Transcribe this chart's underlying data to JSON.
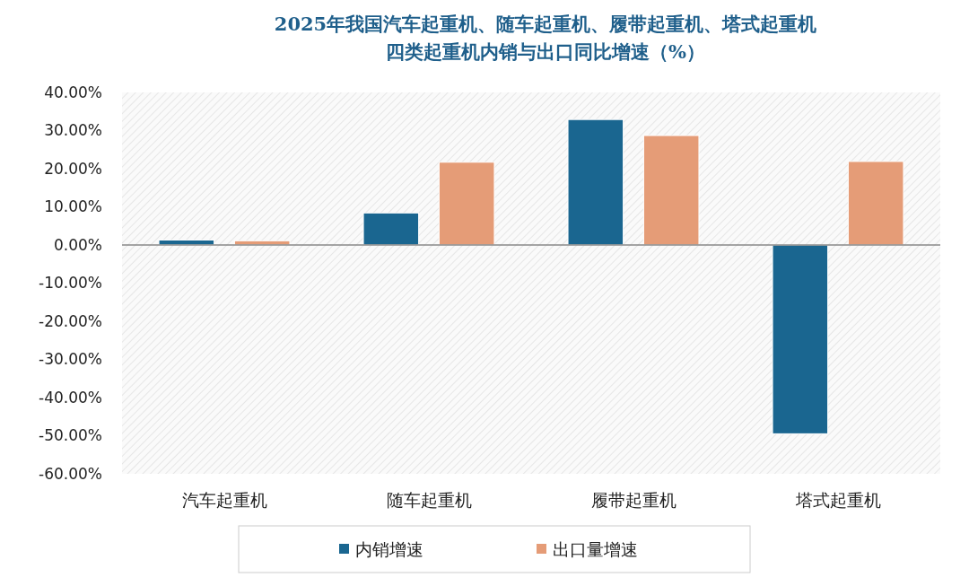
{
  "chart_data": {
    "type": "bar",
    "title": "2025年我国汽车起重机、随车起重机、履带起重机、塔式起重机四类起重机内销与出口同比增速（%）",
    "categories": [
      "汽车起重机",
      "随车起重机",
      "履带起重机",
      "塔式起重机"
    ],
    "series": [
      {
        "name": "内销增速",
        "color": "#1a6690",
        "values": [
          1.3,
          8.4,
          32.9,
          -49.5
        ]
      },
      {
        "name": "出口量增速",
        "color": "#e59c77",
        "values": [
          1.1,
          21.7,
          28.7,
          21.9
        ]
      }
    ],
    "ylim": [
      -60,
      40
    ],
    "yticks": [
      {
        "value": -60,
        "label": "-60.00%"
      },
      {
        "value": -50,
        "label": "-50.00%"
      },
      {
        "value": -40,
        "label": "-40.00%"
      },
      {
        "value": -30,
        "label": "-30.00%"
      },
      {
        "value": -20,
        "label": "-20.00%"
      },
      {
        "value": -10,
        "label": "-10.00%"
      },
      {
        "value": 0,
        "label": "0.00%"
      },
      {
        "value": 10,
        "label": "10.00%"
      },
      {
        "value": 20,
        "label": "20.00%"
      },
      {
        "value": 30,
        "label": "30.00%"
      },
      {
        "value": 40,
        "label": "40.00%"
      }
    ],
    "legend": "bottom"
  }
}
